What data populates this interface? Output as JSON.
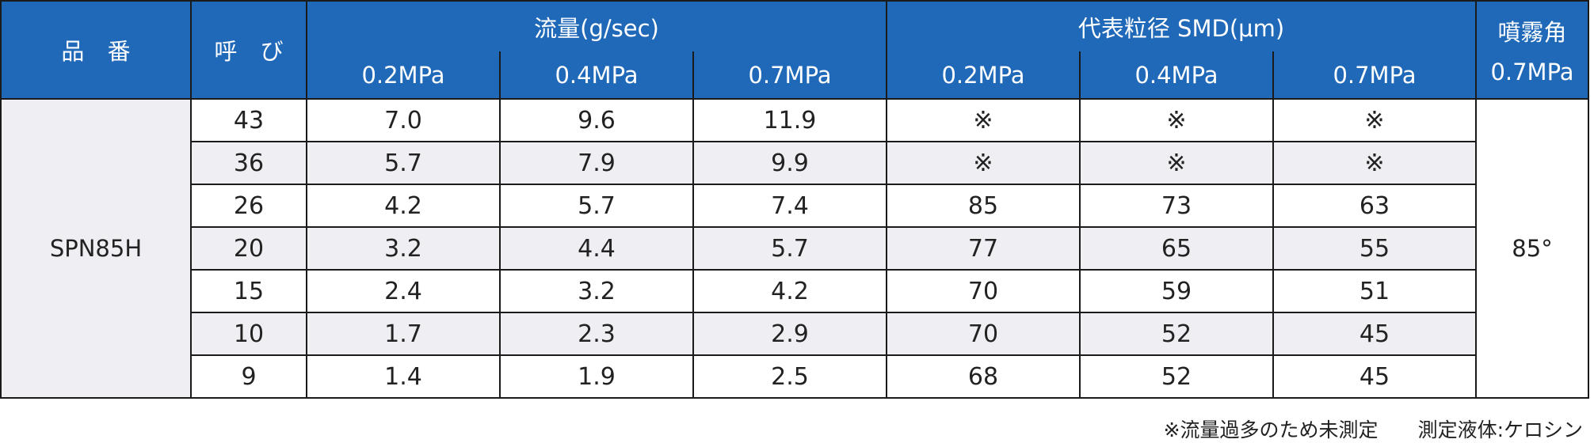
{
  "header": {
    "product_label": "品 番",
    "size_label": "呼 び",
    "flow_group_label": "流量(g/sec)",
    "smd_group_label": "代表粒径 SMD(μm)",
    "angle_label_line1": "噴霧角",
    "angle_label_line2": "0.7MPa",
    "pressures": [
      "0.2MPa",
      "0.4MPa",
      "0.7MPa"
    ]
  },
  "product": "SPN85H",
  "spray_angle": "85°",
  "rows": [
    {
      "size": "43",
      "flow": [
        "7.0",
        "9.6",
        "11.9"
      ],
      "smd": [
        "※",
        "※",
        "※"
      ]
    },
    {
      "size": "36",
      "flow": [
        "5.7",
        "7.9",
        "9.9"
      ],
      "smd": [
        "※",
        "※",
        "※"
      ]
    },
    {
      "size": "26",
      "flow": [
        "4.2",
        "5.7",
        "7.4"
      ],
      "smd": [
        "85",
        "73",
        "63"
      ]
    },
    {
      "size": "20",
      "flow": [
        "3.2",
        "4.4",
        "5.7"
      ],
      "smd": [
        "77",
        "65",
        "55"
      ]
    },
    {
      "size": "15",
      "flow": [
        "2.4",
        "3.2",
        "4.2"
      ],
      "smd": [
        "70",
        "59",
        "51"
      ]
    },
    {
      "size": "10",
      "flow": [
        "1.7",
        "2.3",
        "2.9"
      ],
      "smd": [
        "70",
        "52",
        "45"
      ]
    },
    {
      "size": "9",
      "flow": [
        "1.4",
        "1.9",
        "2.5"
      ],
      "smd": [
        "68",
        "52",
        "45"
      ]
    }
  ],
  "footnote": {
    "note": "※流量過多のため未測定",
    "liquid": "測定液体:ケロシン"
  },
  "colors": {
    "header_bg": "#1f69b8",
    "header_text": "#ffffff",
    "alt_row_bg": "#efeff3",
    "border": "#1a1a1a"
  }
}
